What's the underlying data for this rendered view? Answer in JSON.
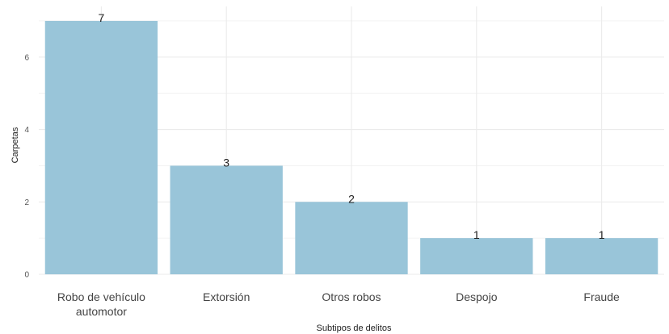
{
  "chart_data": {
    "type": "bar",
    "categories": [
      [
        "Robo de vehículo",
        "automotor"
      ],
      [
        "Extorsión"
      ],
      [
        "Otros robos"
      ],
      [
        "Despojo"
      ],
      [
        "Fraude"
      ]
    ],
    "values": [
      7,
      3,
      2,
      1,
      1
    ],
    "data_labels": [
      "7",
      "3",
      "2",
      "1",
      "1"
    ],
    "xlabel": "Subtipos de delitos",
    "ylabel": "Carpetas",
    "ylim": [
      0,
      7.4
    ],
    "yticks": [
      0,
      2,
      4,
      6
    ],
    "grid": true,
    "bar_color": "#99c5d9",
    "grid_color": "#ebebeb"
  }
}
